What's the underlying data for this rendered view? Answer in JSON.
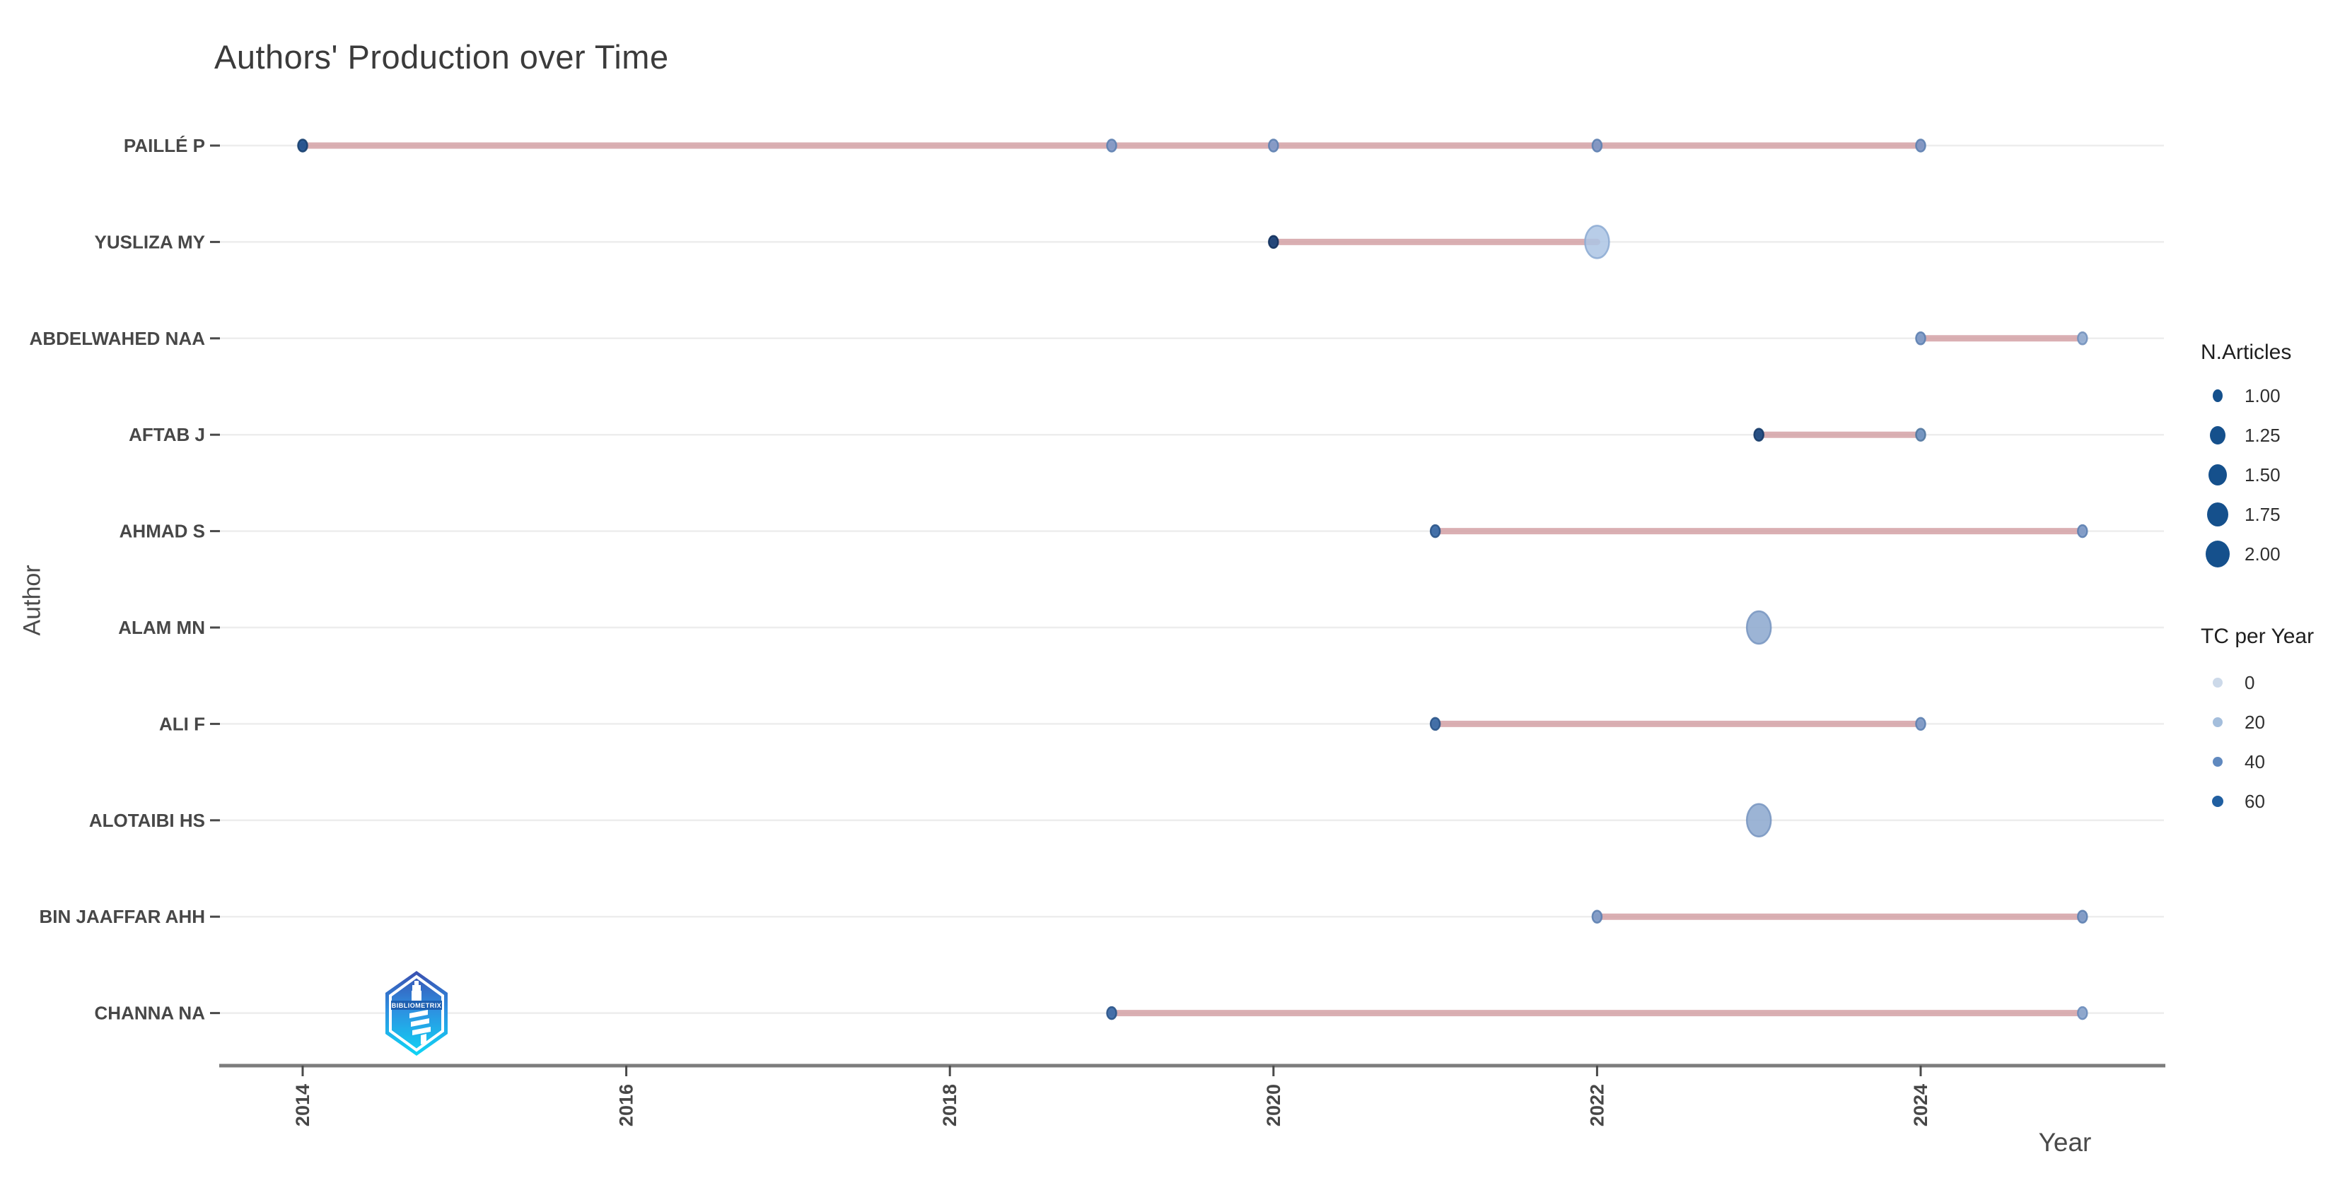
{
  "title": "Authors' Production over Time",
  "x_axis": {
    "label": "Year",
    "ticks": [
      "2014",
      "2016",
      "2018",
      "2020",
      "2022",
      "2024"
    ]
  },
  "y_axis": {
    "label": "Author"
  },
  "legend": {
    "size": {
      "title": "N.Articles",
      "dot_color": "#15508c",
      "items": [
        {
          "label": "1.00",
          "r": 8
        },
        {
          "label": "1.25",
          "r": 12
        },
        {
          "label": "1.50",
          "r": 14
        },
        {
          "label": "1.75",
          "r": 16
        },
        {
          "label": "2.00",
          "r": 18
        }
      ]
    },
    "color": {
      "title": "TC per Year",
      "items": [
        {
          "label": "0",
          "color": "#ccd9e9",
          "r": 7
        },
        {
          "label": "20",
          "color": "#a4bedc",
          "r": 7
        },
        {
          "label": "40",
          "color": "#6089bf",
          "r": 7
        },
        {
          "label": "60",
          "color": "#205fa1",
          "r": 8
        }
      ]
    }
  },
  "colors": {
    "timeline_line": "#d4a2a6",
    "gridline": "#ededed",
    "axis_line": "#7c7c7c",
    "axis_text": "#474747",
    "dark_dot": "#1f4a81"
  },
  "branding": {
    "logo_name": "bibliometrix-logo",
    "logo_text": "BIBLIOMETRIX"
  },
  "chart_data": {
    "type": "scatter",
    "title": "Authors' Production over Time",
    "xlabel": "Year",
    "ylabel": "Author",
    "x_range": [
      2013.5,
      2025.5
    ],
    "grid": "horizontal-only",
    "legend_position": "right",
    "size_encoding": "N.Articles",
    "color_encoding": "TC per Year (darker = higher)",
    "rows": [
      {
        "author": "PAILLÉ P",
        "line": [
          2014,
          2024
        ],
        "points": [
          {
            "year": 2014,
            "n_articles": 1,
            "tc_per_year": 60,
            "fill": "#20508e",
            "stroke": "#173f6e"
          },
          {
            "year": 2019,
            "n_articles": 1,
            "tc_per_year": 20,
            "fill": "#8399c6",
            "stroke": "#5d80b0"
          },
          {
            "year": 2020,
            "n_articles": 1,
            "tc_per_year": 20,
            "fill": "#8399c6",
            "stroke": "#5d80b0"
          },
          {
            "year": 2022,
            "n_articles": 1,
            "tc_per_year": 20,
            "fill": "#7f96c3",
            "stroke": "#5d80b0"
          },
          {
            "year": 2024,
            "n_articles": 1,
            "tc_per_year": 20,
            "fill": "#7f96c3",
            "stroke": "#5d80b0"
          }
        ]
      },
      {
        "author": "YUSLIZA MY",
        "line": [
          2020,
          2022
        ],
        "points": [
          {
            "year": 2020,
            "n_articles": 1,
            "tc_per_year": 60,
            "fill": "#1a4076",
            "stroke": "#12305c"
          },
          {
            "year": 2022,
            "n_articles": 2,
            "tc_per_year": 20,
            "fill": "#abc4e4",
            "stroke": "#8fadd4"
          }
        ]
      },
      {
        "author": "ABDELWAHED NAA",
        "line": [
          2024,
          2025
        ],
        "points": [
          {
            "year": 2024,
            "n_articles": 1,
            "tc_per_year": 20,
            "fill": "#7e9bc7",
            "stroke": "#5d80b0"
          },
          {
            "year": 2025,
            "n_articles": 1,
            "tc_per_year": 10,
            "fill": "#95afd3",
            "stroke": "#7391bd"
          }
        ]
      },
      {
        "author": "AFTAB J",
        "line": [
          2023,
          2024
        ],
        "points": [
          {
            "year": 2023,
            "n_articles": 1,
            "tc_per_year": 60,
            "fill": "#1f4a81",
            "stroke": "#163a68"
          },
          {
            "year": 2024,
            "n_articles": 1,
            "tc_per_year": 30,
            "fill": "#7093c1",
            "stroke": "#52779f"
          }
        ]
      },
      {
        "author": "AHMAD S",
        "line": [
          2021,
          2025
        ],
        "points": [
          {
            "year": 2021,
            "n_articles": 1,
            "tc_per_year": 40,
            "fill": "#3b6ba7",
            "stroke": "#2a5488"
          },
          {
            "year": 2025,
            "n_articles": 1,
            "tc_per_year": 20,
            "fill": "#7e9bc7",
            "stroke": "#5d80b0"
          }
        ]
      },
      {
        "author": "ALAM MN",
        "line": null,
        "points": [
          {
            "year": 2023,
            "n_articles": 2,
            "tc_per_year": 20,
            "fill": "#8ba7ce",
            "stroke": "#7b98c2"
          }
        ]
      },
      {
        "author": "ALI F",
        "line": [
          2021,
          2024
        ],
        "points": [
          {
            "year": 2021,
            "n_articles": 1,
            "tc_per_year": 40,
            "fill": "#3b6ba7",
            "stroke": "#2a5488"
          },
          {
            "year": 2024,
            "n_articles": 1,
            "tc_per_year": 20,
            "fill": "#7e9bc7",
            "stroke": "#5d80b0"
          }
        ]
      },
      {
        "author": "ALOTAIBI HS",
        "line": null,
        "points": [
          {
            "year": 2023,
            "n_articles": 2,
            "tc_per_year": 20,
            "fill": "#8ba7ce",
            "stroke": "#7b98c2"
          }
        ]
      },
      {
        "author": "BIN JAAFFAR AHH",
        "line": [
          2022,
          2025
        ],
        "points": [
          {
            "year": 2022,
            "n_articles": 1,
            "tc_per_year": 20,
            "fill": "#7e9bc7",
            "stroke": "#5d80b0"
          },
          {
            "year": 2025,
            "n_articles": 1,
            "tc_per_year": 20,
            "fill": "#7e9bc7",
            "stroke": "#5d80b0"
          }
        ]
      },
      {
        "author": "CHANNA NA",
        "line": [
          2019,
          2025
        ],
        "points": [
          {
            "year": 2019,
            "n_articles": 1,
            "tc_per_year": 40,
            "fill": "#3d6ba8",
            "stroke": "#2a5488"
          },
          {
            "year": 2025,
            "n_articles": 1,
            "tc_per_year": 20,
            "fill": "#8ba7ce",
            "stroke": "#6c8cba"
          }
        ]
      }
    ]
  }
}
